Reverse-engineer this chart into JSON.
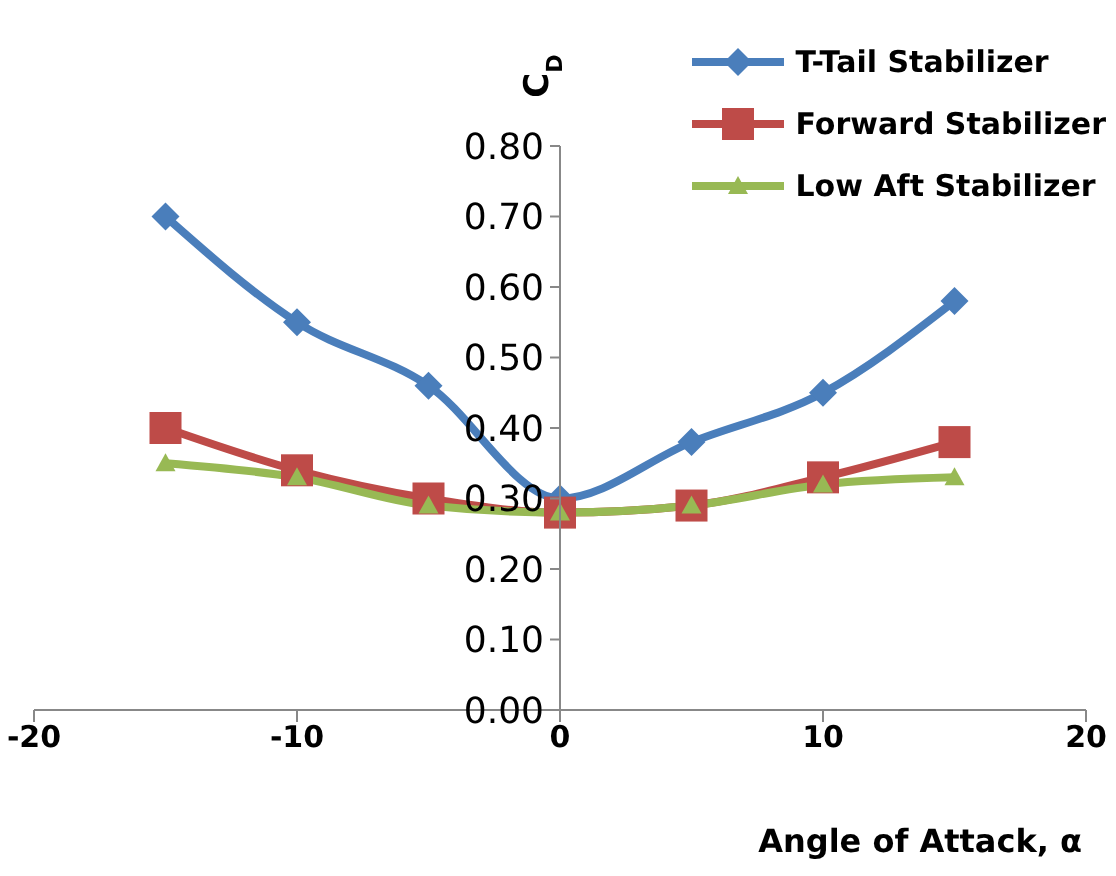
{
  "chart_data": {
    "type": "line",
    "xlabel": "Angle of Attack, α",
    "ylabel": "C$_{D}$",
    "x": [
      -15,
      -10,
      -5,
      0,
      5,
      10,
      15
    ],
    "series": [
      {
        "name": "T-Tail Stabilizer",
        "color": "#4a7ebb",
        "marker": "diamond",
        "values": [
          0.7,
          0.55,
          0.46,
          0.3,
          0.38,
          0.45,
          0.58
        ]
      },
      {
        "name": "Forward Stabilizer",
        "color": "#be4b48",
        "marker": "square",
        "values": [
          0.4,
          0.34,
          0.3,
          0.28,
          0.29,
          0.33,
          0.38
        ]
      },
      {
        "name": "Low Aft Stabilizer",
        "color": "#98b954",
        "marker": "triangle",
        "values": [
          0.35,
          0.33,
          0.29,
          0.28,
          0.29,
          0.32,
          0.33
        ]
      }
    ],
    "xlim": [
      -20,
      20
    ],
    "xticks": [
      -20,
      -10,
      0,
      10,
      20
    ],
    "ylim": [
      0,
      0.8
    ],
    "yticks": [
      {
        "value": 0,
        "label": "0.00"
      },
      {
        "value": 0.1,
        "label": "0.10"
      },
      {
        "value": 0.2,
        "label": "0.20"
      },
      {
        "value": 0.3,
        "label": "0.30"
      },
      {
        "value": 0.4,
        "label": "0.40"
      },
      {
        "value": 0.5,
        "label": "0.50"
      },
      {
        "value": 0.6,
        "label": "0.60"
      },
      {
        "value": 0.7,
        "label": "0.70"
      },
      {
        "value": 0.8,
        "label": "0.80"
      }
    ],
    "grid": false,
    "legend": "top right",
    "line_style": "solid"
  }
}
